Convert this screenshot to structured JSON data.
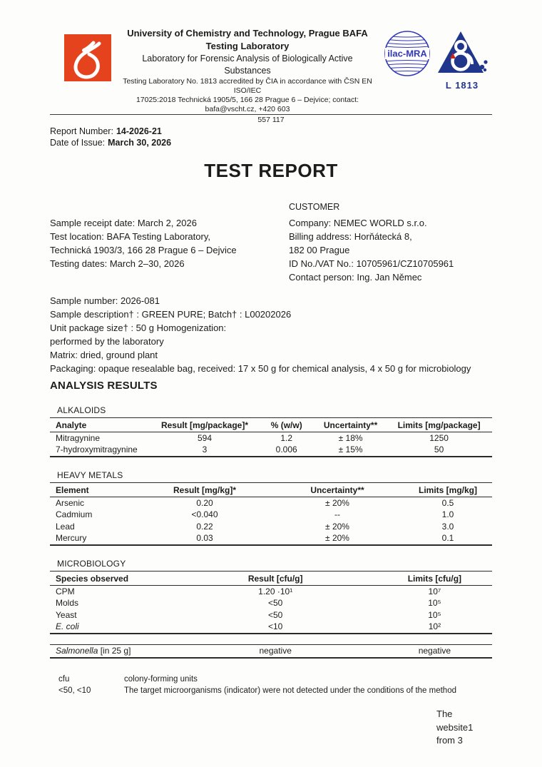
{
  "header": {
    "org_line1": "University of Chemistry and Technology, Prague BAFA",
    "org_line2": "Testing Laboratory",
    "org_line3": "Laboratory for Forensic Analysis of Biologically Active",
    "org_line4": "Substances",
    "accreditation_line1": "Testing Laboratory No. 1813 accredited by ČIA in accordance with ČSN EN ISO/IEC",
    "accreditation_line2": "17025:2018 Technická 1905/5, 166 28 Prague 6 – Dejvice; contact: bafa@vscht.cz, +420 603",
    "phone_tail": "557 117",
    "ilac_mra_label": "ilac-MRA",
    "cia_accreditation_number": "L 1813"
  },
  "report_meta": {
    "report_number_label": "Report Number:",
    "report_number": "14-2026-21",
    "date_of_issue_label": "Date of Issue:",
    "date_of_issue": "March 30, 2026"
  },
  "title": "TEST REPORT",
  "sample_info": {
    "lines": [
      "Sample receipt date: March 2, 2026",
      "Test location: BAFA Testing Laboratory,",
      "Technická 1903/3, 166 28 Prague 6 – Dejvice",
      "Testing dates: March 2–30, 2026"
    ]
  },
  "customer": {
    "heading": "CUSTOMER",
    "lines": [
      "Company: NEMEC WORLD s.r.o.",
      "Billing address: Horňátecká 8,",
      "182 00 Prague",
      "ID No./VAT No.: 10705961/CZ10705961",
      "Contact person: Ing. Jan Němec"
    ]
  },
  "sample_details": {
    "lines": [
      "Sample number: 2026-081",
      "Sample description† : GREEN PURE; Batch† : L00202026",
      "Unit package size† : 50 g Homogenization:",
      "performed by the laboratory",
      "Matrix: dried, ground plant",
      "Packaging: opaque resealable bag, received: 17 x 50 g for chemical analysis, 4 x 50 g for microbiology"
    ]
  },
  "analysis_results_heading": "ANALYSIS RESULTS",
  "sections": {
    "alkaloids": {
      "label": "ALKALOIDS",
      "table": {
        "headers": [
          "Analyte",
          "Result [mg/package]*",
          "% (w/w)",
          "Uncertainty**",
          "Limits [mg/package]"
        ],
        "rows": [
          [
            "Mitragynine",
            "594",
            "1.2",
            "± 18%",
            "1250"
          ],
          [
            "7-hydroxymitragynine",
            "3",
            "0.006",
            "± 15%",
            "50"
          ]
        ]
      }
    },
    "heavy_metals": {
      "label": "HEAVY METALS",
      "table": {
        "headers": [
          "Element",
          "Result [mg/kg]*",
          "Uncertainty**",
          "Limits [mg/kg]"
        ],
        "rows": [
          [
            "Arsenic",
            "0.20",
            "± 20%",
            "0.5"
          ],
          [
            "Cadmium",
            "<0.040",
            "--",
            "1.0"
          ],
          [
            "Lead",
            "0.22",
            "± 20%",
            "3.0"
          ],
          [
            "Mercury",
            "0.03",
            "± 20%",
            "0.1"
          ]
        ]
      }
    },
    "microbiology": {
      "label": "MICROBIOLOGY",
      "table": {
        "headers": [
          "Species observed",
          "Result [cfu/g]",
          "Limits [cfu/g]"
        ],
        "rows": [
          [
            "CPM",
            "1.20 ·10¹",
            "10⁷"
          ],
          [
            "Molds",
            "<50",
            "10⁵"
          ],
          [
            "Yeast",
            "<50",
            "10⁵"
          ],
          [
            "E. coli",
            "<10",
            "10²"
          ]
        ],
        "italic_rows": [
          3
        ]
      }
    }
  },
  "salmonella": {
    "species_italic": "Salmonella",
    "species_rest": " [in 25 g]",
    "result": "negative",
    "limit": "negative"
  },
  "footnotes": [
    {
      "term": "cfu",
      "definition": "colony-forming units"
    },
    {
      "term": "<50, <10",
      "definition": "The target microorganisms (indicator) were not detected under the conditions of the method"
    }
  ],
  "footer": {
    "lines": [
      "The",
      "website1",
      "from 3"
    ]
  },
  "colors": {
    "logo_orange": "#E5431E",
    "cia_blue": "#20368C",
    "ilac_blue": "#3238B8",
    "accent_red": "#C5271E"
  }
}
